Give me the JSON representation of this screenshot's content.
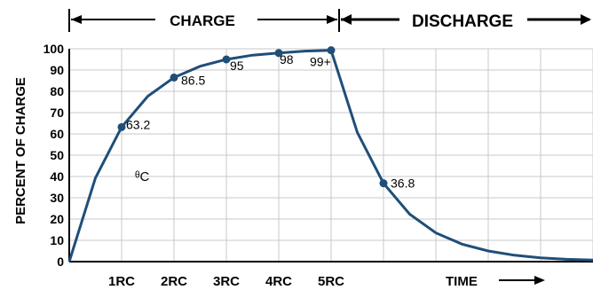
{
  "chart_data": {
    "type": "line",
    "title": "",
    "ylabel": "PERCENT OF CHARGE",
    "xlabel": "TIME",
    "ylim": [
      0,
      100
    ],
    "xlim": [
      0,
      10
    ],
    "y_ticks": [
      "0",
      "10",
      "20",
      "30",
      "40",
      "50",
      "60",
      "70",
      "80",
      "90",
      "100"
    ],
    "x_tick_labels": [
      "1RC",
      "2RC",
      "3RC",
      "4RC",
      "5RC"
    ],
    "x_ticks": [
      1,
      2,
      3,
      4,
      5
    ],
    "grid": true,
    "phases": {
      "charge_label": "CHARGE",
      "discharge_label": "DISCHARGE"
    },
    "legend_note": "ᶿC",
    "series": [
      {
        "x": [
          0,
          0.5,
          1,
          1.5,
          2,
          2.5,
          3,
          3.5,
          4,
          4.5,
          5,
          5.5,
          6,
          6.5,
          7,
          7.5,
          8,
          8.5,
          9,
          9.5,
          10
        ],
        "y": [
          0,
          39.3,
          63.2,
          77.7,
          86.5,
          91.8,
          95,
          97,
          98,
          98.9,
          99.3,
          60.7,
          36.8,
          22.3,
          13.5,
          8.2,
          5,
          3,
          1.8,
          1.1,
          0.7
        ]
      }
    ],
    "markers": [
      {
        "x": 1,
        "y": 63.2,
        "label": "63.2"
      },
      {
        "x": 2,
        "y": 86.5,
        "label": "86.5"
      },
      {
        "x": 3,
        "y": 95,
        "label": "95"
      },
      {
        "x": 4,
        "y": 98,
        "label": "98"
      },
      {
        "x": 5,
        "y": 99.3,
        "label": "99+"
      },
      {
        "x": 6,
        "y": 36.8,
        "label": "36.8"
      }
    ],
    "colors": {
      "curve": "#1f4e79",
      "grid": "#c8c8c8",
      "axis": "#000000"
    }
  }
}
